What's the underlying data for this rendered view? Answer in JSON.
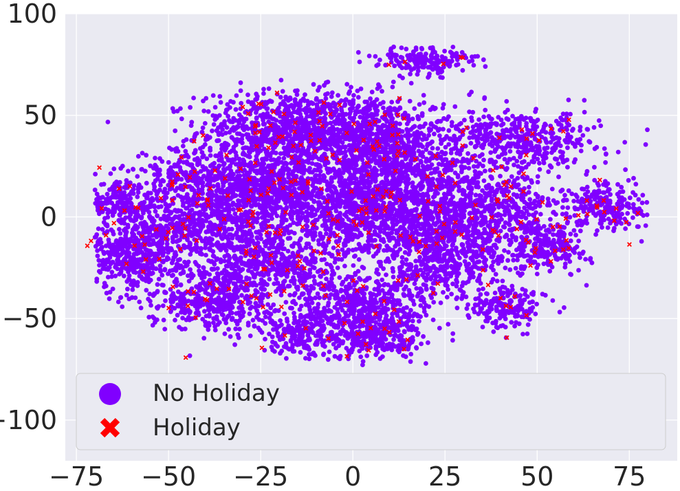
{
  "chart_data": {
    "type": "scatter",
    "title": "",
    "xlabel": "",
    "ylabel": "",
    "xlim": [
      -78,
      88
    ],
    "ylim": [
      -120,
      100
    ],
    "x_ticks": [
      -75,
      -50,
      -25,
      0,
      25,
      50,
      75
    ],
    "y_ticks": [
      -100,
      -50,
      0,
      50,
      100
    ],
    "x_tick_labels": [
      "−75",
      "−50",
      "−25",
      "0",
      "25",
      "50",
      "75"
    ],
    "y_tick_labels": [
      "−100",
      "−50",
      "0",
      "50",
      "100"
    ],
    "grid": true,
    "legend_position": "lower-left",
    "background_color": "#eaeaf2",
    "grid_color": "#ffffff",
    "series": [
      {
        "name": "No Holiday",
        "marker": "circle",
        "color": "#8000ff",
        "clusters": [
          {
            "cx": -18,
            "cy": 42,
            "sx": 12,
            "sy": 10,
            "n": 900
          },
          {
            "cx": 5,
            "cy": 40,
            "sx": 10,
            "sy": 10,
            "n": 650
          },
          {
            "cx": -24,
            "cy": 14,
            "sx": 9,
            "sy": 8,
            "n": 650
          },
          {
            "cx": 2,
            "cy": 4,
            "sx": 12,
            "sy": 12,
            "n": 900
          },
          {
            "cx": 22,
            "cy": -8,
            "sx": 9,
            "sy": 10,
            "n": 500
          },
          {
            "cx": -42,
            "cy": -5,
            "sx": 12,
            "sy": 10,
            "n": 700
          },
          {
            "cx": -60,
            "cy": -18,
            "sx": 7,
            "sy": 8,
            "n": 400
          },
          {
            "cx": -64,
            "cy": 8,
            "sx": 4,
            "sy": 6,
            "n": 160
          },
          {
            "cx": -38,
            "cy": -40,
            "sx": 9,
            "sy": 8,
            "n": 450
          },
          {
            "cx": -14,
            "cy": -58,
            "sx": 6,
            "sy": 6,
            "n": 220
          },
          {
            "cx": 3,
            "cy": -45,
            "sx": 9,
            "sy": 9,
            "n": 500
          },
          {
            "cx": 8,
            "cy": -60,
            "sx": 6,
            "sy": 5,
            "n": 200
          },
          {
            "cx": 45,
            "cy": 38,
            "sx": 11,
            "sy": 7,
            "n": 450
          },
          {
            "cx": 40,
            "cy": 5,
            "sx": 9,
            "sy": 10,
            "n": 420
          },
          {
            "cx": 52,
            "cy": -15,
            "sx": 6,
            "sy": 6,
            "n": 220
          },
          {
            "cx": 70,
            "cy": 5,
            "sx": 7,
            "sy": 6,
            "n": 220
          },
          {
            "cx": 42,
            "cy": -45,
            "sx": 5,
            "sy": 5,
            "n": 170
          },
          {
            "cx": 20,
            "cy": 77,
            "sx": 7,
            "sy": 3.5,
            "n": 170
          },
          {
            "cx": 25,
            "cy": -25,
            "sx": 8,
            "sy": 8,
            "n": 250
          },
          {
            "cx": -20,
            "cy": -25,
            "sx": 10,
            "sy": 8,
            "n": 400
          },
          {
            "cx": 18,
            "cy": 20,
            "sx": 10,
            "sy": 9,
            "n": 400
          },
          {
            "cx": -45,
            "cy": 20,
            "sx": 8,
            "sy": 6,
            "n": 220
          }
        ]
      },
      {
        "name": "Holiday",
        "marker": "x",
        "color": "#ff0000",
        "count": 340
      }
    ]
  },
  "legend": {
    "items": [
      {
        "label": "No Holiday",
        "color": "#8000ff",
        "marker": "circle"
      },
      {
        "label": "Holiday",
        "color": "#ff0000",
        "marker": "x"
      }
    ]
  }
}
